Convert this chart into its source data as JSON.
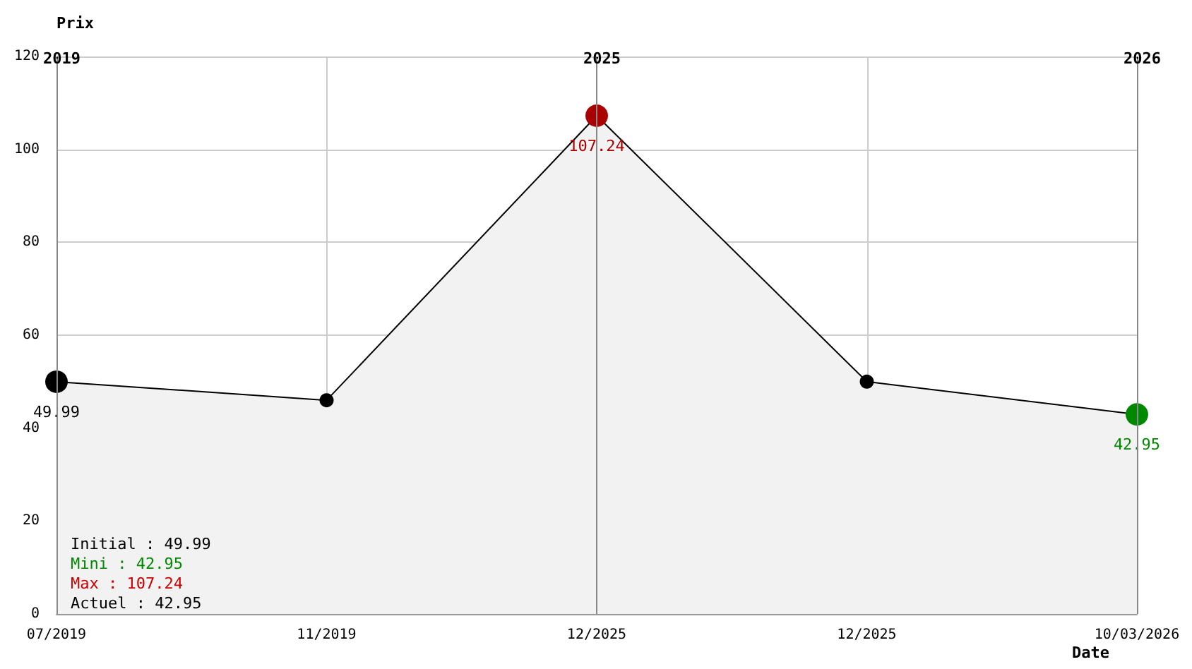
{
  "chart_data": {
    "type": "area",
    "xlabel": "Date",
    "ylabel": "Prix",
    "categories": [
      "07/2019",
      "11/2019",
      "12/2025",
      "12/2025",
      "10/03/2026"
    ],
    "series": [
      {
        "color": "#000000",
        "values": [
          49.99,
          46,
          107.24,
          50,
          42.95
        ],
        "colors": [
          "#000000",
          "#000000",
          "#aa0000",
          "#000000",
          "#008800"
        ],
        "value_labels": [
          "49.99",
          null,
          "107.24",
          null,
          "42.95"
        ]
      }
    ],
    "ylim": [
      0,
      120
    ],
    "yticks": [
      0,
      20,
      40,
      60,
      80,
      100,
      120
    ],
    "grid": true,
    "marker": "circle",
    "ref_lines": [
      {
        "axis": "x",
        "value": "07/2019",
        "label": "2019"
      },
      {
        "axis": "x",
        "value": "12/2025",
        "label": "2025"
      },
      {
        "axis": "x",
        "value": "10/03/2026",
        "label": "2026"
      }
    ],
    "annotations": [
      "Initial : 49.99",
      "Mini : 42.95",
      "Max : 107.24",
      "Actuel : 42.95"
    ]
  }
}
